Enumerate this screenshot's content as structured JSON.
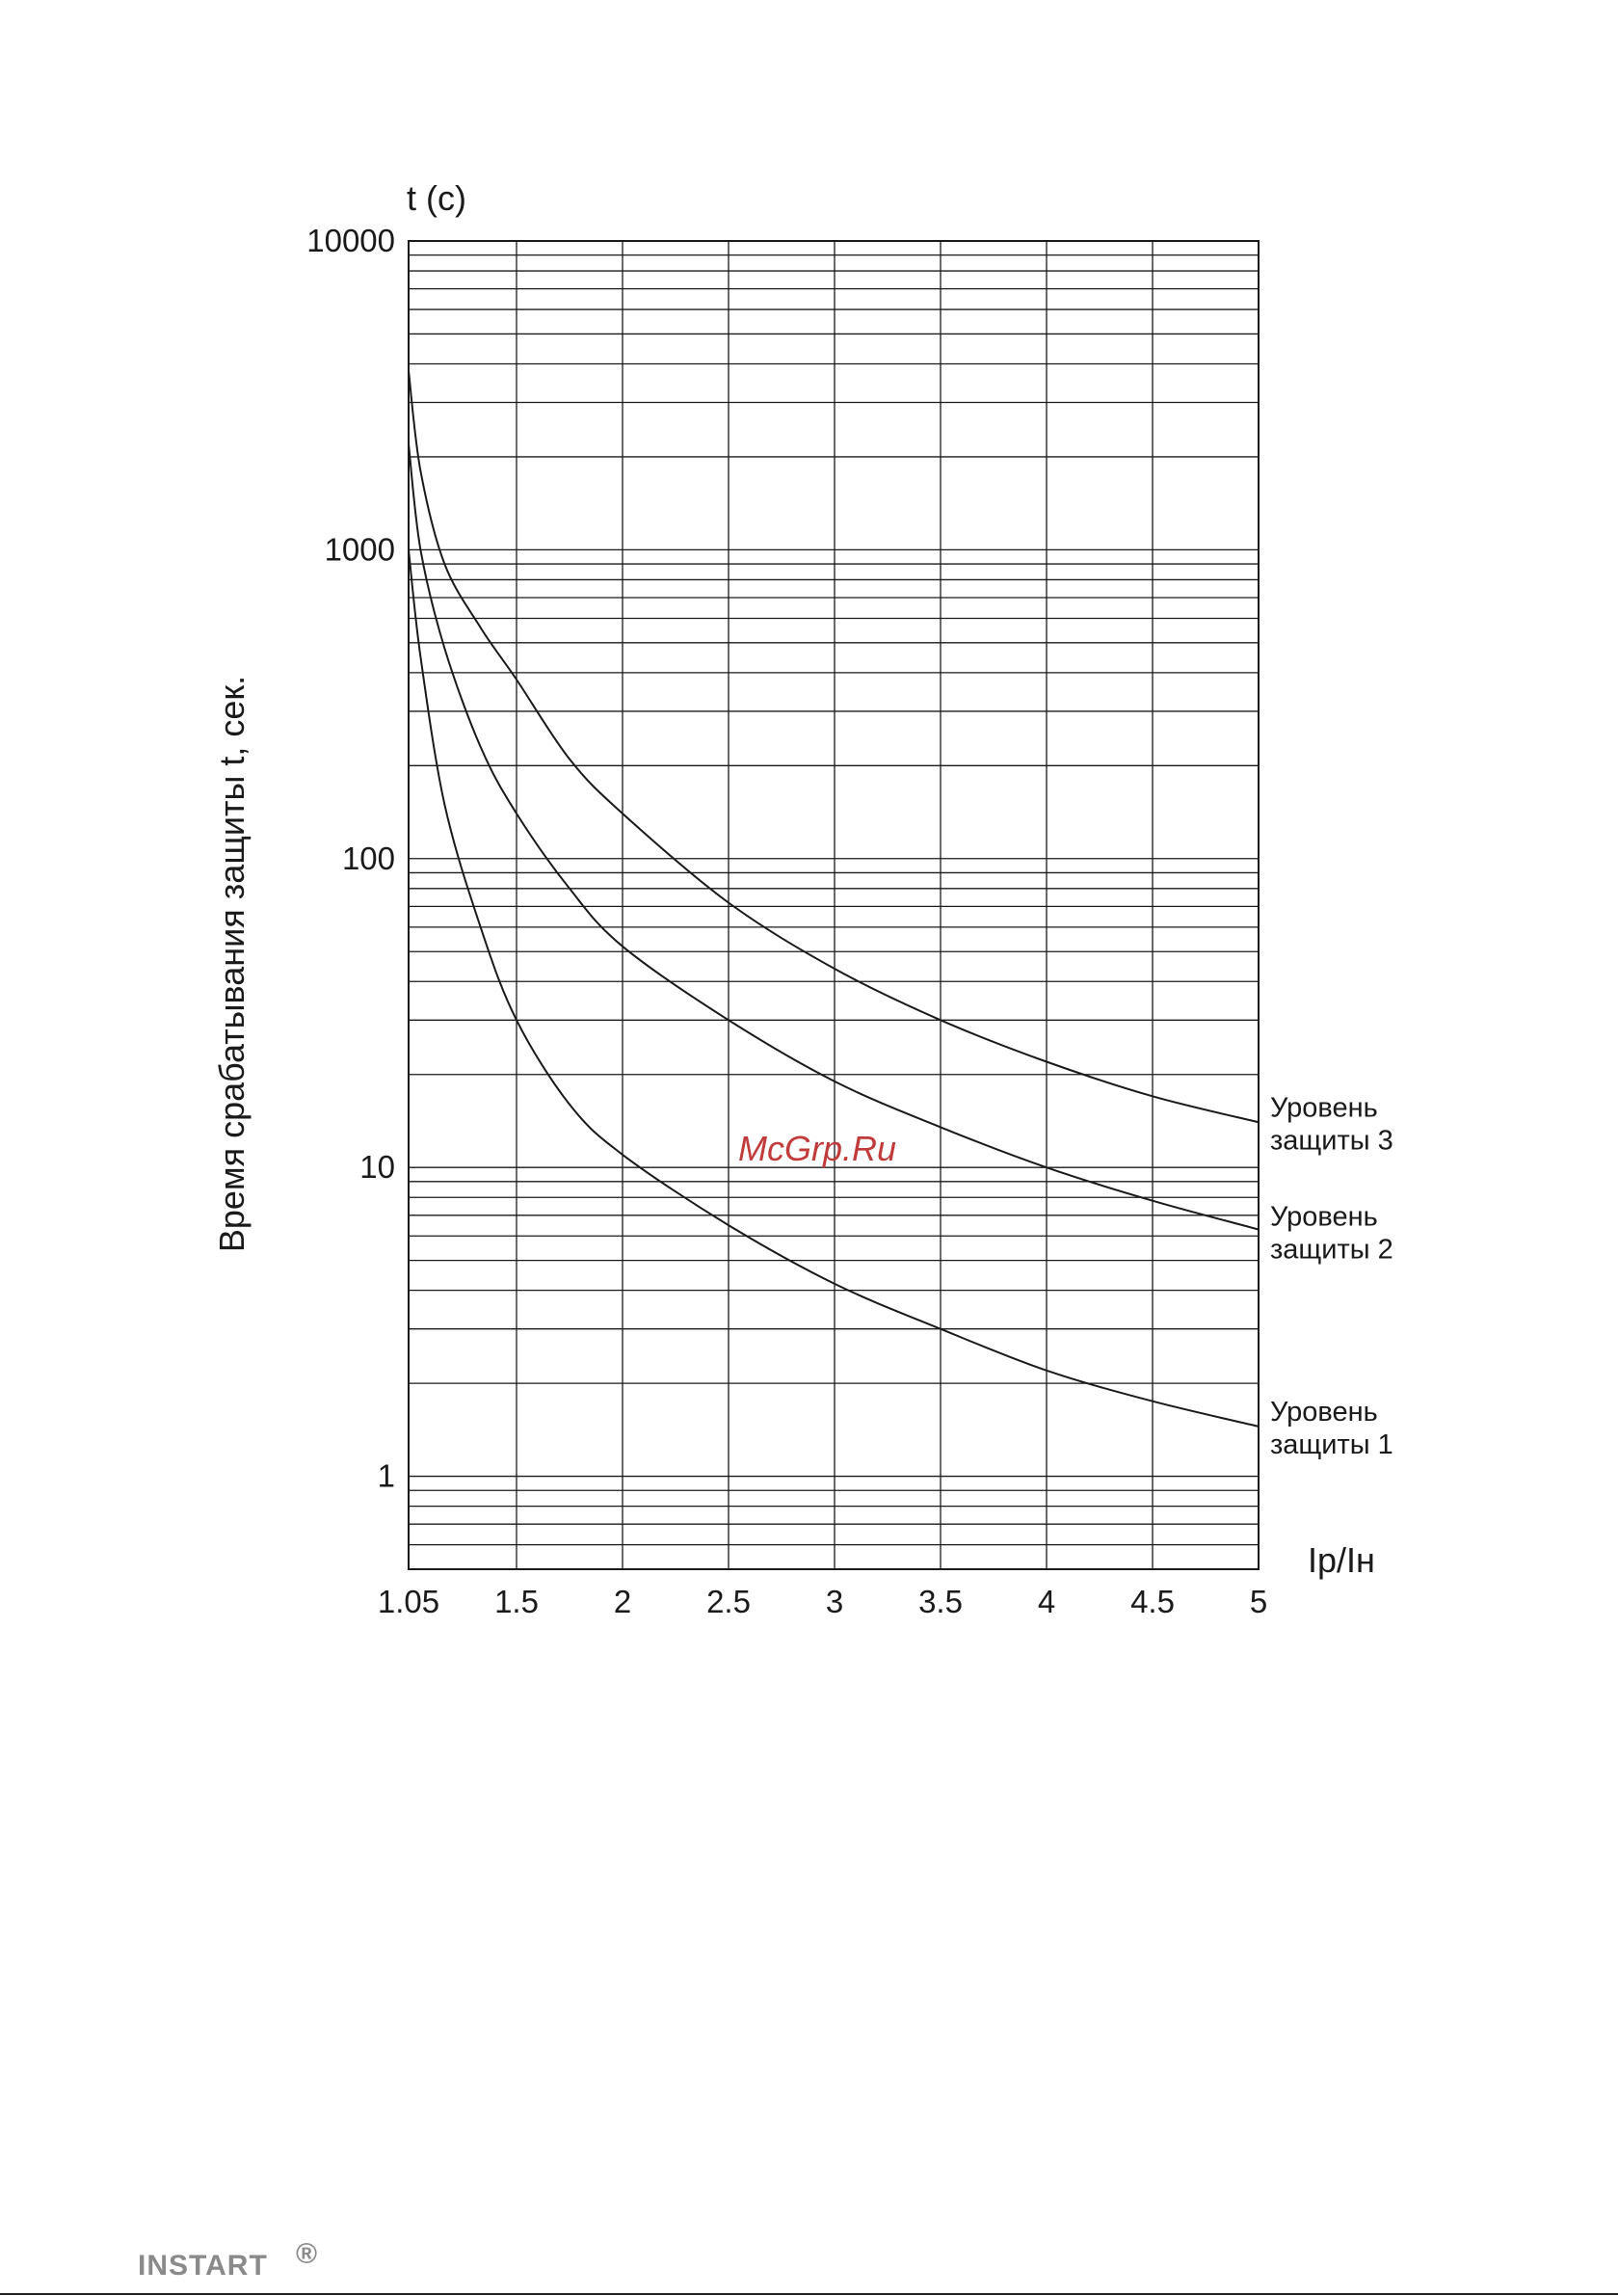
{
  "chart_data": {
    "type": "line",
    "ylabel_top": "t (c)",
    "ylabel_side": "Время срабатывания защиты t, сек.",
    "xlabel": "Ip/Iн",
    "y_scale": "log",
    "ylim": [
      0.5,
      10000
    ],
    "xlim": [
      1.05,
      5
    ],
    "grid": true,
    "y_tick_labels": [
      {
        "value": 10000,
        "label": "10000"
      },
      {
        "value": 1000,
        "label": "1000"
      },
      {
        "value": 100,
        "label": "100"
      },
      {
        "value": 10,
        "label": "10"
      },
      {
        "value": 1,
        "label": "1"
      }
    ],
    "x_tick_labels": [
      {
        "value": 1.05,
        "label": "1.05"
      },
      {
        "value": 1.5,
        "label": "1.5"
      },
      {
        "value": 2,
        "label": "2"
      },
      {
        "value": 2.5,
        "label": "2.5"
      },
      {
        "value": 3,
        "label": "3"
      },
      {
        "value": 3.5,
        "label": "3.5"
      },
      {
        "value": 4,
        "label": "4"
      },
      {
        "value": 4.5,
        "label": "4.5"
      },
      {
        "value": 5,
        "label": "5"
      }
    ],
    "series": [
      {
        "name_line1": "Уровень",
        "name_line2": "защиты 3",
        "x": [
          1.05,
          1.1,
          1.2,
          1.35,
          1.5,
          1.75,
          2,
          2.5,
          3,
          3.5,
          4,
          4.5,
          5
        ],
        "y": [
          3800,
          1800,
          900,
          560,
          380,
          210,
          140,
          72,
          44,
          30,
          22,
          17,
          14
        ]
      },
      {
        "name_line1": "Уровень",
        "name_line2": "защиты 2",
        "x": [
          1.05,
          1.1,
          1.2,
          1.35,
          1.5,
          1.75,
          2,
          2.5,
          3,
          3.5,
          4,
          4.5,
          5
        ],
        "y": [
          2200,
          1000,
          480,
          230,
          140,
          80,
          52,
          30,
          19,
          13.5,
          10,
          7.8,
          6.3
        ]
      },
      {
        "name_line1": "Уровень",
        "name_line2": "защиты 1",
        "x": [
          1.05,
          1.1,
          1.2,
          1.35,
          1.5,
          1.75,
          2,
          2.5,
          3,
          3.5,
          4,
          4.5,
          5
        ],
        "y": [
          1000,
          450,
          150,
          60,
          30,
          16,
          11,
          6.5,
          4.2,
          3.0,
          2.2,
          1.75,
          1.45
        ]
      }
    ]
  },
  "watermark": "McGrp.Ru",
  "brand": {
    "name": "INSTART",
    "mark": "®"
  },
  "colors": {
    "line": "#1a1a1a",
    "watermark": "#c23b3b",
    "brand": "#8a8a8a"
  }
}
